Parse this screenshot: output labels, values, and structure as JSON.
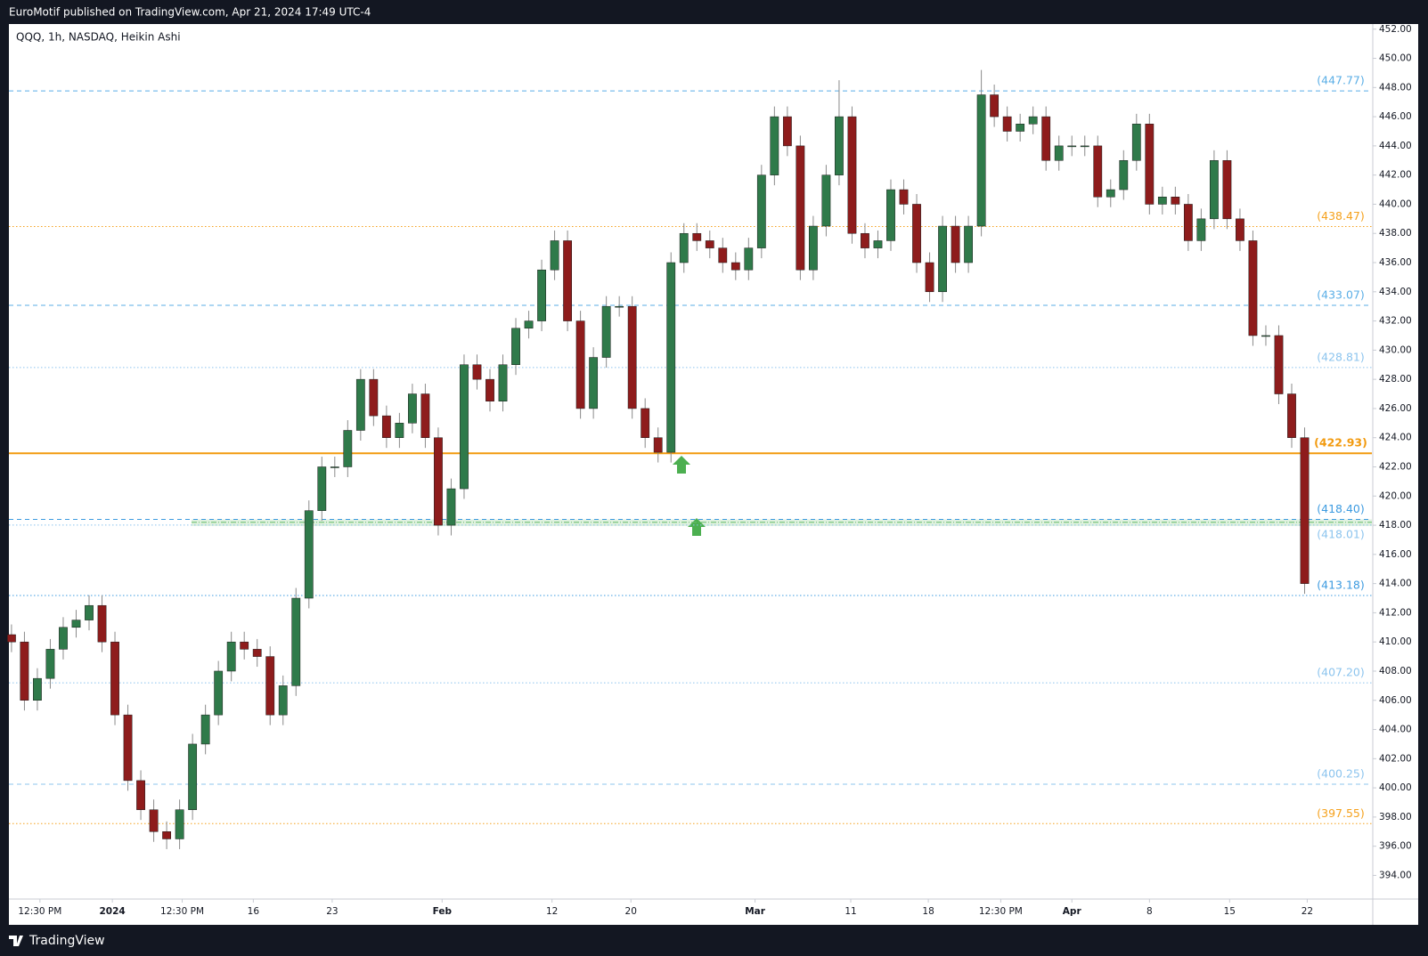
{
  "header": "EuroMotif published on TradingView.com, Apr 21, 2024 17:49 UTC-4",
  "footer": "TradingView",
  "chart_data": {
    "type": "candlestick",
    "title": "QQQ, 1h, NASDAQ, Heikin Ashi",
    "up_color": "#2f7a4a",
    "down_color": "#8e1c1c",
    "wick_color": "#8a8a8a",
    "xlim": [
      -0.2,
      105.2
    ],
    "ylim": [
      392.38,
      452.29
    ],
    "xticks": [
      {
        "value": 2.2,
        "label": "12:30 PM"
      },
      {
        "value": 7.8,
        "label": "2024"
      },
      {
        "value": 13.2,
        "label": "12:30 PM"
      },
      {
        "value": 18.7,
        "label": "16"
      },
      {
        "value": 24.8,
        "label": "23"
      },
      {
        "value": 33.3,
        "label": "Feb"
      },
      {
        "value": 41.8,
        "label": "12"
      },
      {
        "value": 47.9,
        "label": "20"
      },
      {
        "value": 57.5,
        "label": "Mar"
      },
      {
        "value": 64.9,
        "label": "11"
      },
      {
        "value": 70.9,
        "label": "18"
      },
      {
        "value": 76.5,
        "label": "12:30 PM"
      },
      {
        "value": 82.0,
        "label": "Apr"
      },
      {
        "value": 88.0,
        "label": "8"
      },
      {
        "value": 94.2,
        "label": "15"
      },
      {
        "value": 100.2,
        "label": "22"
      }
    ],
    "yticks": [
      {
        "value": 394,
        "label": "394.00"
      },
      {
        "value": 396,
        "label": "396.00"
      },
      {
        "value": 398,
        "label": "398.00"
      },
      {
        "value": 400,
        "label": "400.00"
      },
      {
        "value": 402,
        "label": "402.00"
      },
      {
        "value": 404,
        "label": "404.00"
      },
      {
        "value": 406,
        "label": "406.00"
      },
      {
        "value": 408,
        "label": "408.00"
      },
      {
        "value": 410,
        "label": "410.00"
      },
      {
        "value": 412,
        "label": "412.00"
      },
      {
        "value": 414,
        "label": "414.00"
      },
      {
        "value": 416,
        "label": "416.00"
      },
      {
        "value": 418,
        "label": "418.00"
      },
      {
        "value": 420,
        "label": "420.00"
      },
      {
        "value": 422,
        "label": "422.00"
      },
      {
        "value": 424,
        "label": "424.00"
      },
      {
        "value": 426,
        "label": "426.00"
      },
      {
        "value": 428,
        "label": "428.00"
      },
      {
        "value": 430,
        "label": "430.00"
      },
      {
        "value": 432,
        "label": "432.00"
      },
      {
        "value": 434,
        "label": "434.00"
      },
      {
        "value": 436,
        "label": "436.00"
      },
      {
        "value": 438,
        "label": "438.00"
      },
      {
        "value": 440,
        "label": "440.00"
      },
      {
        "value": 442,
        "label": "442.00"
      },
      {
        "value": 444,
        "label": "444.00"
      },
      {
        "value": 446,
        "label": "446.00"
      },
      {
        "value": 448,
        "label": "448.00"
      },
      {
        "value": 450,
        "label": "450.00"
      },
      {
        "value": 452,
        "label": "452.00"
      }
    ],
    "levels": [
      {
        "value": 447.77,
        "label": "(447.77)",
        "color": "#5aaee6",
        "style": "dashed"
      },
      {
        "value": 438.47,
        "label": "(438.47)",
        "color": "#f5a11c",
        "style": "dotted"
      },
      {
        "value": 433.07,
        "label": "(433.07)",
        "color": "#5aaee6",
        "style": "dashed"
      },
      {
        "value": 428.81,
        "label": "(428.81)",
        "color": "#8cc4ee",
        "style": "dotted"
      },
      {
        "value": 422.93,
        "label": "(422.93)",
        "color": "#f29a0e",
        "style": "solid"
      },
      {
        "value": 418.4,
        "label": "(418.40)",
        "color": "#3d9be0",
        "style": "dashed"
      },
      {
        "value": 418.01,
        "label": "(418.01)",
        "color": "#8cc4ee",
        "style": "dotted"
      },
      {
        "value": 413.18,
        "label": "(413.18)",
        "color": "#3d9be0",
        "style": "dotted"
      },
      {
        "value": 407.2,
        "label": "(407.20)",
        "color": "#8cc4ee",
        "style": "dotted"
      },
      {
        "value": 400.25,
        "label": "(400.25)",
        "color": "#8cc4ee",
        "style": "dashed"
      },
      {
        "value": 397.55,
        "label": "(397.55)",
        "color": "#f5a11c",
        "style": "dotted"
      }
    ],
    "open": [
      410.5,
      410,
      406,
      407.5,
      409.5,
      411,
      411.5,
      412.5,
      410,
      405,
      400.5,
      398.5,
      397,
      396.5,
      398.5,
      403,
      405,
      408,
      410,
      409.5,
      409,
      405,
      407,
      413,
      419,
      422,
      422,
      424.5,
      428,
      425.5,
      424,
      425,
      427,
      424,
      418,
      420.5,
      429,
      428,
      426.5,
      429,
      431.5,
      432,
      435.5,
      437.5,
      432,
      426,
      429.5,
      433,
      433,
      426,
      424,
      423,
      436,
      438,
      437.5,
      437,
      436,
      435.5,
      437,
      442,
      446,
      444,
      435.5,
      438.5,
      442,
      446,
      438,
      437,
      437.5,
      441,
      440,
      436,
      434,
      438.5,
      436,
      438.5,
      447.5,
      446,
      445,
      445.5,
      446,
      443,
      444,
      444,
      444,
      440.5,
      441,
      443,
      445.5,
      440,
      440.5,
      440,
      437.5,
      439,
      443,
      439,
      437.5,
      431,
      431,
      427,
      424
    ],
    "high": [
      411.2,
      410.7,
      408.2,
      410.2,
      411.7,
      412.2,
      413.2,
      413.2,
      410.7,
      405.7,
      401.2,
      399.2,
      397.7,
      399.2,
      403.7,
      405.7,
      408.7,
      410.7,
      410.7,
      410.2,
      409.7,
      407.7,
      413.7,
      419.7,
      422.7,
      422.7,
      425.2,
      428.7,
      428.7,
      426.2,
      425.7,
      427.7,
      427.7,
      424.7,
      421.2,
      429.7,
      429.7,
      428.7,
      429.7,
      432.2,
      432.7,
      436.2,
      438.2,
      438.2,
      432.7,
      430.2,
      433.7,
      433.7,
      433.7,
      426.7,
      424.7,
      436.7,
      438.7,
      438.7,
      438.2,
      437.7,
      436.7,
      437.7,
      442.7,
      446.7,
      446.7,
      444.7,
      439.2,
      442.7,
      448.5,
      446.7,
      438.7,
      438.2,
      441.7,
      441.7,
      440.7,
      436.7,
      439.2,
      439.2,
      439.2,
      449.2,
      448.2,
      446.7,
      446.2,
      446.7,
      446.7,
      444.7,
      444.7,
      444.7,
      444.7,
      441.7,
      443.7,
      446.2,
      446.2,
      441.2,
      441.2,
      440.7,
      439.7,
      443.7,
      443.7,
      439.7,
      438.2,
      431.7,
      431.7,
      427.7,
      424.7
    ],
    "low": [
      409.3,
      405.3,
      405.3,
      406.8,
      408.8,
      410.3,
      410.8,
      409.3,
      404.3,
      399.8,
      397.8,
      396.3,
      395.8,
      395.8,
      397.8,
      402.3,
      404.3,
      407.3,
      408.8,
      408.3,
      404.3,
      404.3,
      406.3,
      412.3,
      418.3,
      421.3,
      421.3,
      423.8,
      424.8,
      423.3,
      423.3,
      424.3,
      423.3,
      417.3,
      417.3,
      419.8,
      427.3,
      425.8,
      425.8,
      428.3,
      430.8,
      431.3,
      434.8,
      431.3,
      425.3,
      425.3,
      428.8,
      432.3,
      425.3,
      423.3,
      422.3,
      422.3,
      435.3,
      436.8,
      436.3,
      435.3,
      434.8,
      434.8,
      436.3,
      441.3,
      443.3,
      434.8,
      434.8,
      437.8,
      441.3,
      437.3,
      436.3,
      436.3,
      436.8,
      439.3,
      435.3,
      433.3,
      433.3,
      435.3,
      435.3,
      437.8,
      445.3,
      444.3,
      444.3,
      444.8,
      442.3,
      442.3,
      443.3,
      443.3,
      439.8,
      439.8,
      440.3,
      442.3,
      439.3,
      439.3,
      439.3,
      436.8,
      436.8,
      438.3,
      438.3,
      436.8,
      430.3,
      430.3,
      426.3,
      423.3,
      413.3
    ],
    "close": [
      410,
      406,
      407.5,
      409.5,
      411,
      411.5,
      412.5,
      410,
      405,
      400.5,
      398.5,
      397,
      396.5,
      398.5,
      403,
      405,
      408,
      410,
      409.5,
      409,
      405,
      407,
      413,
      419,
      422,
      422,
      424.5,
      428,
      425.5,
      424,
      425,
      427,
      424,
      418,
      420.5,
      429,
      428,
      426.5,
      429,
      431.5,
      432,
      435.5,
      437.5,
      432,
      426,
      429.5,
      433,
      433,
      426,
      424,
      423,
      436,
      438,
      437.5,
      437,
      436,
      435.5,
      437,
      442,
      446,
      444,
      435.5,
      438.5,
      442,
      446,
      438,
      437,
      437.5,
      441,
      440,
      436,
      434,
      438.5,
      436,
      438.5,
      447.5,
      446,
      445,
      445.5,
      446,
      443,
      444,
      444,
      444,
      440.5,
      441,
      443,
      445.5,
      440,
      440.5,
      440,
      437.5,
      439,
      443,
      439,
      437.5,
      431,
      431,
      427,
      424,
      414
    ]
  }
}
